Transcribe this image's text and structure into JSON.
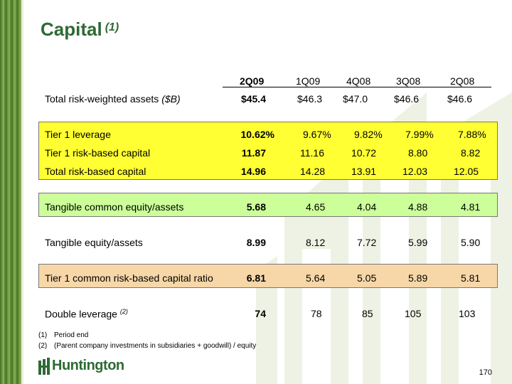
{
  "title": "Capital",
  "title_note": "(1)",
  "columns": [
    "2Q09",
    "1Q09",
    "4Q08",
    "3Q08",
    "2Q08"
  ],
  "rows": [
    {
      "label_main": "Total risk-weighted assets ",
      "label_note": "($B)",
      "values": [
        "$45.4",
        "$46.3",
        "$47.0",
        "$46.6",
        "$46.6"
      ]
    },
    {
      "label_main": "Tier 1 leverage",
      "label_note": "",
      "values": [
        "10.62%",
        "9.67%",
        "9.82%",
        "7.99%",
        "7.88%"
      ]
    },
    {
      "label_main": "Tier 1 risk-based capital",
      "label_note": "",
      "values": [
        "11.87",
        "11.16",
        "10.72",
        "8.80",
        "8.82"
      ]
    },
    {
      "label_main": "Total risk-based capital",
      "label_note": "",
      "values": [
        "14.96",
        "14.28",
        "13.91",
        "12.03",
        "12.05"
      ]
    },
    {
      "label_main": "Tangible common equity/assets",
      "label_note": "",
      "values": [
        "5.68",
        "4.65",
        "4.04",
        "4.88",
        "4.81"
      ]
    },
    {
      "label_main": "Tangible equity/assets",
      "label_note": "",
      "values": [
        "8.99",
        "8.12",
        "7.72",
        "5.99",
        "5.90"
      ]
    },
    {
      "label_main": "Tier 1 common risk-based capital ratio",
      "label_note": "",
      "values": [
        "6.81",
        "5.64",
        "5.05",
        "5.89",
        "5.81"
      ]
    },
    {
      "label_main": "Double leverage ",
      "label_note": "(2)",
      "values": [
        "74",
        "78",
        "85",
        "105",
        "103"
      ]
    }
  ],
  "footnotes": [
    {
      "num": "(1)",
      "text": "Period end"
    },
    {
      "num": "(2)",
      "text": "(Parent company investments in subsidiaries + goodwill) / equity"
    }
  ],
  "logo_text": "Huntington",
  "page_number": "170",
  "colors": {
    "title": "#2e6a34",
    "band_yellow": "#ffff33",
    "band_green": "#ccff99",
    "band_tan": "#f7d7a8"
  }
}
